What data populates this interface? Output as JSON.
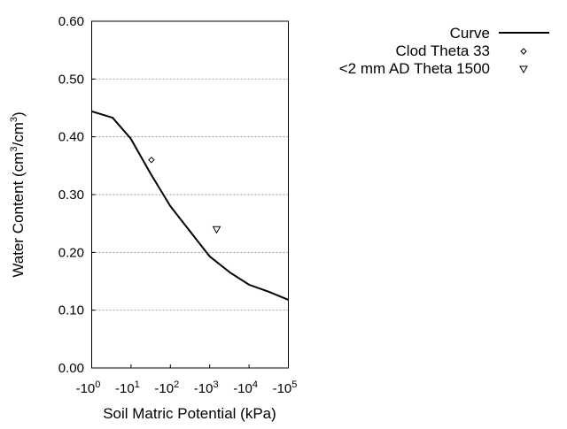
{
  "chart_data": {
    "type": "line",
    "title": "",
    "xlabel": "Soil Matric Potential (kPa)",
    "ylabel_parts": [
      "Water Content (cm",
      "3",
      "/cm",
      "3",
      ")"
    ],
    "x_scale": "log",
    "xlim": [
      -1,
      -100000
    ],
    "ylim": [
      0,
      0.6
    ],
    "x_ticks": [
      {
        "base": "-10",
        "exp": "0",
        "value": -1
      },
      {
        "base": "-10",
        "exp": "1",
        "value": -10
      },
      {
        "base": "-10",
        "exp": "2",
        "value": -100
      },
      {
        "base": "-10",
        "exp": "3",
        "value": -1000
      },
      {
        "base": "-10",
        "exp": "4",
        "value": -10000
      },
      {
        "base": "-10",
        "exp": "5",
        "value": -100000
      }
    ],
    "y_ticks": [
      "0.00",
      "0.10",
      "0.20",
      "0.30",
      "0.40",
      "0.50",
      "0.60"
    ],
    "grid": "horizontal dotted",
    "legend_position": "right",
    "series": [
      {
        "name": "Curve",
        "type": "line",
        "color": "#000000",
        "x": [
          -1,
          -3.4,
          -9.8,
          -31.6,
          -100,
          -295,
          -1000,
          -3310,
          -10000,
          -31600,
          -100000
        ],
        "y": [
          0.444,
          0.433,
          0.397,
          0.336,
          0.28,
          0.239,
          0.193,
          0.165,
          0.144,
          0.132,
          0.118
        ]
      },
      {
        "name": "Clod Theta 33",
        "type": "scatter",
        "marker": "diamond",
        "x": [
          -33
        ],
        "y": [
          0.36
        ]
      },
      {
        "name": "<2 mm AD Theta 1500",
        "type": "scatter",
        "marker": "triangle-down",
        "x": [
          -1500
        ],
        "y": [
          0.24
        ]
      }
    ]
  }
}
